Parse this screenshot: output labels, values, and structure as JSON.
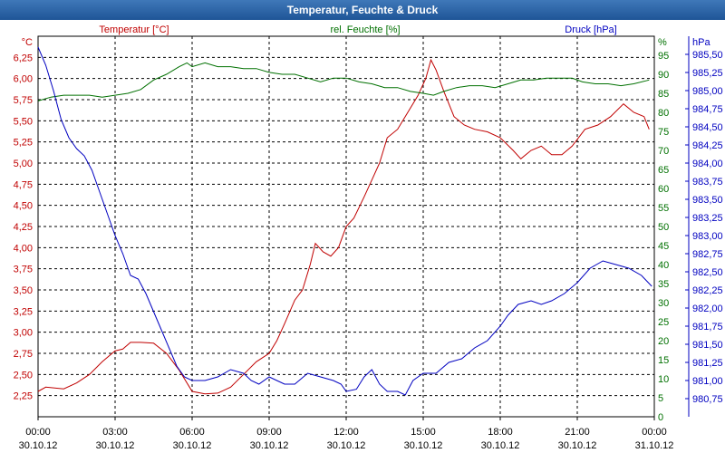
{
  "window": {
    "title": "Temperatur, Feuchte & Druck"
  },
  "colors": {
    "temperature": "#c00000",
    "humidity": "#007000",
    "pressure": "#0000c0",
    "titlebar": "#2a63a6"
  },
  "chart_data": {
    "type": "line",
    "title": "Temperatur, Feuchte & Druck",
    "grid": true,
    "x_ticks": [
      {
        "time": "00:00",
        "date": "30.10.12"
      },
      {
        "time": "03:00",
        "date": "30.10.12"
      },
      {
        "time": "06:00",
        "date": "30.10.12"
      },
      {
        "time": "09:00",
        "date": "30.10.12"
      },
      {
        "time": "12:00",
        "date": "30.10.12"
      },
      {
        "time": "15:00",
        "date": "30.10.12"
      },
      {
        "time": "18:00",
        "date": "30.10.12"
      },
      {
        "time": "21:00",
        "date": "30.10.12"
      },
      {
        "time": "00:00",
        "date": "31.10.12"
      }
    ],
    "axes": {
      "temperature": {
        "label": "Temperatur [°C]",
        "unit": "°C",
        "ylim": [
          2.0,
          6.5
        ],
        "ticks": [
          "2,25",
          "2,50",
          "2,75",
          "3,00",
          "3,25",
          "3,50",
          "3,75",
          "4,00",
          "4,25",
          "4,50",
          "4,75",
          "5,00",
          "5,25",
          "5,50",
          "5,75",
          "6,00",
          "6,25"
        ]
      },
      "humidity": {
        "label": "rel. Feuchte [%]",
        "unit": "%",
        "ylim": [
          0,
          100
        ],
        "ticks": [
          "0",
          "5",
          "10",
          "15",
          "20",
          "25",
          "30",
          "35",
          "40",
          "45",
          "50",
          "55",
          "60",
          "65",
          "70",
          "75",
          "80",
          "85",
          "90",
          "95"
        ]
      },
      "pressure": {
        "label": "Druck [hPa]",
        "unit": "hPa",
        "ylim": [
          980.5,
          985.75
        ],
        "ticks": [
          "980,75",
          "981,00",
          "981,25",
          "981,50",
          "981,75",
          "982,00",
          "982,25",
          "982,50",
          "982,75",
          "983,00",
          "983,25",
          "983,50",
          "983,75",
          "984,00",
          "984,25",
          "984,50",
          "984,75",
          "985,00",
          "985,25",
          "985,50"
        ]
      }
    },
    "series": [
      {
        "name": "Temperatur [°C]",
        "axis": "temperature",
        "points": [
          [
            0,
            2.3
          ],
          [
            0.3,
            2.35
          ],
          [
            1,
            2.33
          ],
          [
            1.5,
            2.4
          ],
          [
            2,
            2.5
          ],
          [
            2.5,
            2.65
          ],
          [
            3,
            2.78
          ],
          [
            3.3,
            2.8
          ],
          [
            3.6,
            2.88
          ],
          [
            4,
            2.88
          ],
          [
            4.5,
            2.87
          ],
          [
            5,
            2.75
          ],
          [
            5.5,
            2.55
          ],
          [
            6,
            2.3
          ],
          [
            6.5,
            2.27
          ],
          [
            7,
            2.28
          ],
          [
            7.5,
            2.35
          ],
          [
            8,
            2.5
          ],
          [
            8.5,
            2.65
          ],
          [
            9,
            2.75
          ],
          [
            9.3,
            2.9
          ],
          [
            9.6,
            3.1
          ],
          [
            10,
            3.38
          ],
          [
            10.3,
            3.5
          ],
          [
            10.6,
            3.8
          ],
          [
            10.8,
            4.05
          ],
          [
            11.1,
            3.95
          ],
          [
            11.4,
            3.9
          ],
          [
            11.7,
            4.0
          ],
          [
            12,
            4.25
          ],
          [
            12.3,
            4.35
          ],
          [
            12.7,
            4.6
          ],
          [
            13,
            4.8
          ],
          [
            13.3,
            5.0
          ],
          [
            13.6,
            5.3
          ],
          [
            14,
            5.4
          ],
          [
            14.4,
            5.6
          ],
          [
            14.8,
            5.8
          ],
          [
            15.1,
            6.0
          ],
          [
            15.3,
            6.22
          ],
          [
            15.5,
            6.1
          ],
          [
            15.8,
            5.85
          ],
          [
            16.2,
            5.55
          ],
          [
            16.6,
            5.45
          ],
          [
            17,
            5.4
          ],
          [
            17.5,
            5.37
          ],
          [
            18,
            5.3
          ],
          [
            18.5,
            5.15
          ],
          [
            18.8,
            5.05
          ],
          [
            19.2,
            5.15
          ],
          [
            19.6,
            5.2
          ],
          [
            20,
            5.1
          ],
          [
            20.4,
            5.1
          ],
          [
            20.8,
            5.2
          ],
          [
            21.3,
            5.4
          ],
          [
            21.8,
            5.45
          ],
          [
            22.3,
            5.55
          ],
          [
            22.8,
            5.7
          ],
          [
            23.2,
            5.6
          ],
          [
            23.6,
            5.55
          ],
          [
            23.8,
            5.4
          ]
        ]
      },
      {
        "name": "rel. Feuchte [%]",
        "axis": "humidity",
        "points": [
          [
            0,
            83
          ],
          [
            0.5,
            84
          ],
          [
            1,
            84.5
          ],
          [
            1.5,
            84.5
          ],
          [
            2,
            84.5
          ],
          [
            2.5,
            84
          ],
          [
            3,
            84.5
          ],
          [
            3.5,
            85
          ],
          [
            4,
            86
          ],
          [
            4.5,
            88.5
          ],
          [
            5,
            90
          ],
          [
            5.5,
            92
          ],
          [
            5.8,
            93
          ],
          [
            6,
            92
          ],
          [
            6.5,
            93
          ],
          [
            7,
            92
          ],
          [
            7.5,
            92
          ],
          [
            8,
            91.5
          ],
          [
            8.5,
            91.5
          ],
          [
            9,
            90.5
          ],
          [
            9.5,
            90
          ],
          [
            10,
            90
          ],
          [
            10.5,
            89
          ],
          [
            11,
            88
          ],
          [
            11.5,
            89
          ],
          [
            12,
            89
          ],
          [
            12.5,
            88
          ],
          [
            13,
            87.5
          ],
          [
            13.5,
            86.5
          ],
          [
            14,
            86.5
          ],
          [
            14.5,
            85.5
          ],
          [
            15,
            85
          ],
          [
            15.4,
            84.5
          ],
          [
            15.8,
            85.5
          ],
          [
            16.3,
            86.5
          ],
          [
            16.8,
            87
          ],
          [
            17.3,
            87
          ],
          [
            17.8,
            86.5
          ],
          [
            18.3,
            87.5
          ],
          [
            18.8,
            88.5
          ],
          [
            19.3,
            88.5
          ],
          [
            19.8,
            89
          ],
          [
            20.3,
            89
          ],
          [
            20.8,
            89
          ],
          [
            21.2,
            88
          ],
          [
            21.7,
            87.5
          ],
          [
            22.2,
            87.5
          ],
          [
            22.7,
            87
          ],
          [
            23.2,
            87.5
          ],
          [
            23.8,
            88.5
          ]
        ]
      },
      {
        "name": "Druck [hPa]",
        "axis": "pressure",
        "points": [
          [
            0,
            985.6
          ],
          [
            0.3,
            985.35
          ],
          [
            0.6,
            985.0
          ],
          [
            0.9,
            984.6
          ],
          [
            1.2,
            984.35
          ],
          [
            1.5,
            984.2
          ],
          [
            1.8,
            984.1
          ],
          [
            2.1,
            983.9
          ],
          [
            2.4,
            983.6
          ],
          [
            2.7,
            983.3
          ],
          [
            3,
            983.0
          ],
          [
            3.3,
            982.75
          ],
          [
            3.6,
            982.45
          ],
          [
            3.9,
            982.4
          ],
          [
            4.2,
            982.2
          ],
          [
            4.5,
            981.95
          ],
          [
            4.8,
            981.7
          ],
          [
            5.1,
            981.45
          ],
          [
            5.4,
            981.2
          ],
          [
            5.7,
            981.05
          ],
          [
            6,
            981.0
          ],
          [
            6.5,
            981.0
          ],
          [
            7,
            981.05
          ],
          [
            7.5,
            981.15
          ],
          [
            8,
            981.1
          ],
          [
            8.3,
            981.0
          ],
          [
            8.6,
            980.95
          ],
          [
            9,
            981.05
          ],
          [
            9.3,
            981.0
          ],
          [
            9.6,
            980.95
          ],
          [
            10,
            980.95
          ],
          [
            10.5,
            981.1
          ],
          [
            11,
            981.05
          ],
          [
            11.5,
            981.0
          ],
          [
            11.8,
            980.95
          ],
          [
            12,
            980.85
          ],
          [
            12.4,
            980.88
          ],
          [
            12.7,
            981.05
          ],
          [
            13,
            981.15
          ],
          [
            13.3,
            980.95
          ],
          [
            13.6,
            980.85
          ],
          [
            14,
            980.85
          ],
          [
            14.3,
            980.8
          ],
          [
            14.6,
            981.0
          ],
          [
            15,
            981.1
          ],
          [
            15.5,
            981.1
          ],
          [
            16,
            981.25
          ],
          [
            16.5,
            981.3
          ],
          [
            17,
            981.45
          ],
          [
            17.5,
            981.55
          ],
          [
            18,
            981.75
          ],
          [
            18.3,
            981.9
          ],
          [
            18.7,
            982.05
          ],
          [
            19.2,
            982.1
          ],
          [
            19.6,
            982.05
          ],
          [
            20,
            982.1
          ],
          [
            20.5,
            982.2
          ],
          [
            21,
            982.35
          ],
          [
            21.5,
            982.55
          ],
          [
            22,
            982.65
          ],
          [
            22.5,
            982.6
          ],
          [
            23,
            982.55
          ],
          [
            23.5,
            982.45
          ],
          [
            23.9,
            982.3
          ]
        ]
      }
    ]
  }
}
